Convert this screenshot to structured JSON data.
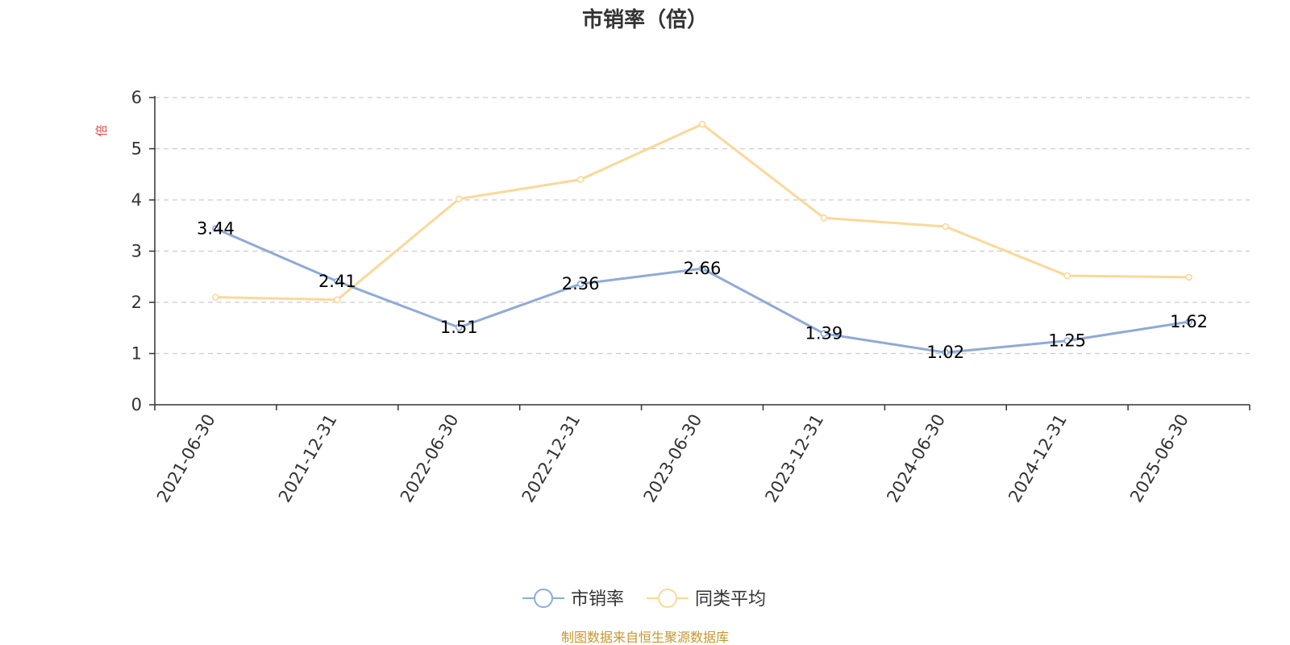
{
  "chart_data": {
    "type": "line",
    "title": "市销率（倍）",
    "ylabel": "倍",
    "categories": [
      "2021-06-30",
      "2021-12-31",
      "2022-06-30",
      "2022-12-31",
      "2023-06-30",
      "2023-12-31",
      "2024-06-30",
      "2024-12-31",
      "2025-06-30"
    ],
    "ylim": [
      0,
      6
    ],
    "yticks": [
      "0",
      "1",
      "2",
      "3",
      "4",
      "5",
      "6"
    ],
    "grid": true,
    "legend_position": "bottom-center",
    "series": [
      {
        "name": "市销率",
        "color": "#8eaad8",
        "values": [
          3.44,
          2.41,
          1.51,
          2.36,
          2.66,
          1.39,
          1.02,
          1.25,
          1.62
        ],
        "labels": [
          "3.44",
          "2.41",
          "1.51",
          "2.36",
          "2.66",
          "1.39",
          "1.02",
          "1.25",
          "1.62"
        ]
      },
      {
        "name": "同类平均",
        "color": "#fbd898",
        "values": [
          2.1,
          2.05,
          4.02,
          4.4,
          5.48,
          3.65,
          3.48,
          2.52,
          2.49
        ]
      }
    ]
  },
  "source_note": "制图数据来自恒生聚源数据库",
  "colors": {
    "unit_label": "#e8453c",
    "source_note": "#c8962e",
    "axis": "#333333",
    "grid": "#cccccc"
  }
}
